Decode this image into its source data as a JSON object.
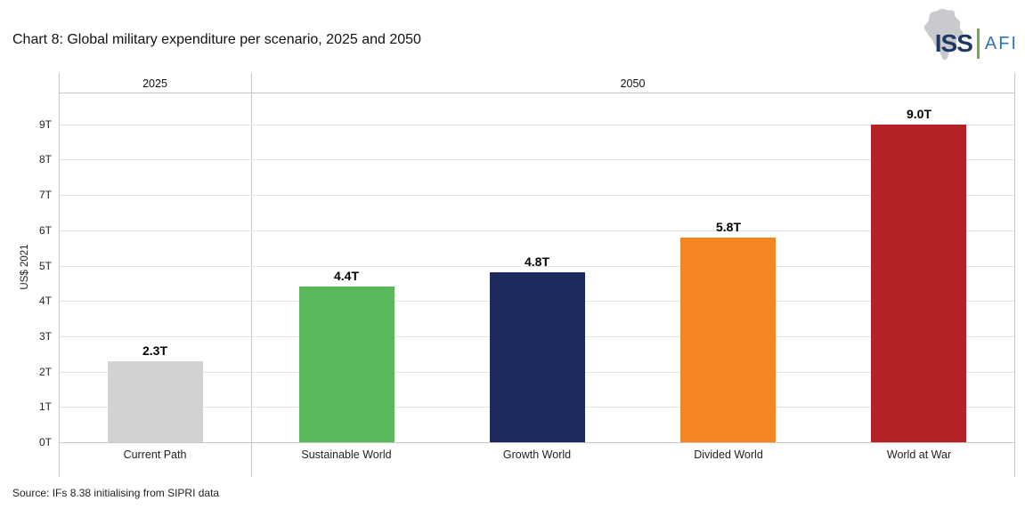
{
  "header": {
    "logo": {
      "iss": "ISS",
      "afi": "AFI",
      "iss_color": "#1F3864",
      "afi_color": "#2E75B6",
      "divider_color": "#70AD47",
      "map_color": "#C9CACD"
    }
  },
  "chart_data": {
    "type": "bar",
    "title": "Chart 8: Global military expenditure per scenario, 2025 and 2050",
    "ylabel": "US$ 2021",
    "ylim": [
      0,
      9.5
    ],
    "yticks": [
      0,
      1,
      2,
      3,
      4,
      5,
      6,
      7,
      8,
      9
    ],
    "ytick_suffix": "T",
    "grid": true,
    "grid_color": "#e4e4e4",
    "frame_color": "#c6c6c6",
    "panels": [
      {
        "label": "2025",
        "categories": [
          "Current Path"
        ],
        "values": [
          2.3
        ],
        "value_labels": [
          "2.3T"
        ],
        "colors": [
          "#D2D2D2"
        ]
      },
      {
        "label": "2050",
        "categories": [
          "Sustainable World",
          "Growth World",
          "Divided World",
          "World at War"
        ],
        "values": [
          4.4,
          4.8,
          5.8,
          9.0
        ],
        "value_labels": [
          "4.4T",
          "4.8T",
          "5.8T",
          "9.0T"
        ],
        "colors": [
          "#58B95C",
          "#1E2A5E",
          "#F48621",
          "#B52226"
        ]
      }
    ]
  },
  "footer": {
    "source": "Source: IFs 8.38 initialising from SIPRI data"
  }
}
